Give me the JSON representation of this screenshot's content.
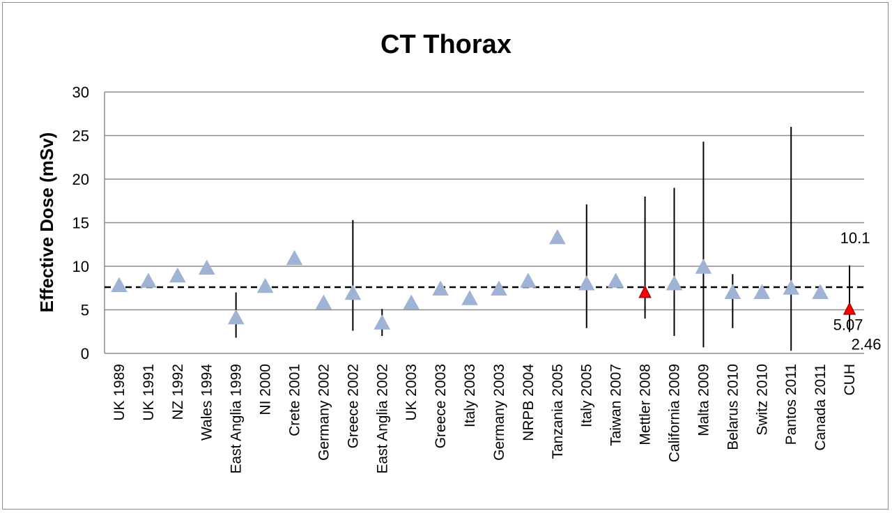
{
  "chart_data": {
    "type": "scatter",
    "title": "CT Thorax",
    "xlabel": "",
    "ylabel": "Effective Dose (mSv)",
    "ylim": [
      0,
      30
    ],
    "yticks": [
      0,
      5,
      10,
      15,
      20,
      25,
      30
    ],
    "grid": true,
    "legend": "none",
    "reference_line": 7.6,
    "categories": [
      "UK  1989",
      "UK 1991",
      "NZ 1992",
      "Wales 1994",
      "East Anglia 1999",
      "NI 2000",
      "Crete 2001",
      "Germany 2002",
      "Greece 2002",
      "East Anglia 2002",
      "UK 2003",
      "Greece 2003",
      "Italy 2003",
      "Germany 2003",
      "NRPB 2004",
      "Tanzania 2005",
      "Italy 2005",
      "Taiwan 2007",
      "Mettler 2008",
      "California 2009",
      "Malta 2009",
      "Belarus 2010",
      "Switz 2010",
      "Pantos 2011",
      "Canada 2011",
      "CUH"
    ],
    "series": [
      {
        "values": [
          7.8,
          8.3,
          8.9,
          9.8,
          4.1,
          7.7,
          10.9,
          5.8,
          6.9,
          3.5,
          5.8,
          7.4,
          6.3,
          7.4,
          8.3,
          13.3,
          8.0,
          8.3,
          7.0,
          8.0,
          9.9,
          7.0,
          7.0,
          7.5,
          7.0,
          5.07
        ],
        "highlight": [
          false,
          false,
          false,
          false,
          false,
          false,
          false,
          false,
          false,
          false,
          false,
          false,
          false,
          false,
          false,
          false,
          false,
          false,
          true,
          false,
          false,
          false,
          false,
          false,
          false,
          true
        ],
        "err_low": [
          null,
          null,
          null,
          null,
          1.8,
          null,
          null,
          null,
          2.6,
          2.0,
          null,
          null,
          null,
          null,
          null,
          null,
          2.9,
          null,
          4.0,
          2.0,
          0.7,
          2.9,
          null,
          0.3,
          null,
          2.46
        ],
        "err_high": [
          null,
          null,
          null,
          null,
          7.0,
          null,
          null,
          null,
          15.3,
          5.1,
          null,
          null,
          null,
          null,
          null,
          null,
          17.1,
          null,
          18.0,
          19.0,
          24.3,
          9.1,
          null,
          26.0,
          null,
          10.1
        ]
      }
    ],
    "annotations": [
      "10.1",
      "5.07",
      "2.46"
    ],
    "colors": {
      "marker": "#9fb3d5",
      "highlight": "#ff0000",
      "highlight_edge": "#a30000",
      "grid": "#8c8c8c",
      "ref_line": "#000000",
      "error_bar": "#000000"
    }
  }
}
